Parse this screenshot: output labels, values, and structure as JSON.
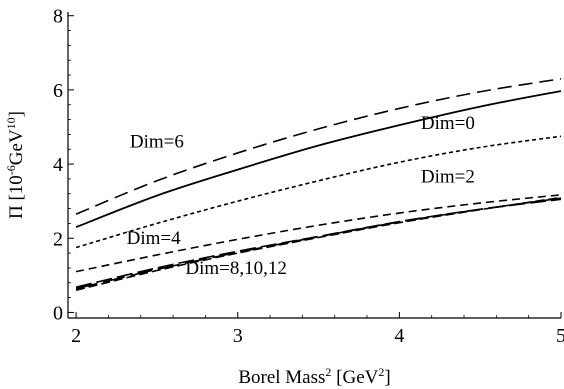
{
  "chart_data": {
    "type": "line",
    "xlabel": {
      "pre": "Borel Mass",
      "sup": "2",
      "post": " [GeV",
      "sup2": "2",
      "end": "]"
    },
    "ylabel": {
      "pre": "Π  [10",
      "sup": "-6",
      "mid": "GeV",
      "sup2": "10",
      "end": "]"
    },
    "xlim": [
      1.95,
      5.0
    ],
    "ylim": [
      -0.15,
      8.1
    ],
    "xticks": [
      2,
      3,
      4,
      5
    ],
    "yticks": [
      0,
      2,
      4,
      6,
      8
    ],
    "series": [
      {
        "name": "Dim=6",
        "style": "long-dash",
        "x": [
          2,
          2.5,
          3,
          3.5,
          4,
          4.5,
          5
        ],
        "y": [
          2.65,
          3.55,
          4.3,
          4.95,
          5.5,
          5.95,
          6.3
        ]
      },
      {
        "name": "Dim=0",
        "style": "solid",
        "x": [
          2,
          2.5,
          3,
          3.5,
          4,
          4.5,
          5
        ],
        "y": [
          2.3,
          3.15,
          3.85,
          4.5,
          5.05,
          5.55,
          5.97
        ]
      },
      {
        "name": "Dim=2",
        "style": "short-dash",
        "x": [
          2,
          2.5,
          3,
          3.5,
          4,
          4.5,
          5
        ],
        "y": [
          1.75,
          2.4,
          3.0,
          3.55,
          4.05,
          4.45,
          4.75
        ]
      },
      {
        "name": "Dim=4",
        "style": "medium-dash",
        "x": [
          2,
          2.5,
          3,
          3.5,
          4,
          4.5,
          5
        ],
        "y": [
          1.1,
          1.55,
          1.97,
          2.35,
          2.68,
          2.95,
          3.17
        ]
      },
      {
        "name": "Dim=8",
        "style": "dash-a",
        "x": [
          2,
          2.5,
          3,
          3.5,
          4,
          4.5,
          5
        ],
        "y": [
          0.68,
          1.2,
          1.65,
          2.05,
          2.45,
          2.78,
          3.05
        ]
      },
      {
        "name": "Dim=10",
        "style": "dash-b",
        "x": [
          2,
          2.5,
          3,
          3.5,
          4,
          4.5,
          5
        ],
        "y": [
          0.6,
          1.13,
          1.6,
          2.02,
          2.42,
          2.77,
          3.1
        ]
      },
      {
        "name": "Dim=12",
        "style": "dash-c",
        "x": [
          2,
          2.5,
          3,
          3.5,
          4,
          4.5,
          5
        ],
        "y": [
          0.64,
          1.16,
          1.62,
          2.04,
          2.44,
          2.78,
          3.08
        ]
      }
    ],
    "annotations": [
      {
        "text": "Dim=6",
        "x": 2.5,
        "y": 4.45
      },
      {
        "text": "Dim=0",
        "x": 4.3,
        "y": 4.95
      },
      {
        "text": "Dim=2",
        "x": 4.3,
        "y": 3.5
      },
      {
        "text": "Dim=4",
        "x": 2.48,
        "y": 1.85
      },
      {
        "text": "Dim=8,10,12",
        "x": 2.99,
        "y": 1.03
      }
    ]
  }
}
